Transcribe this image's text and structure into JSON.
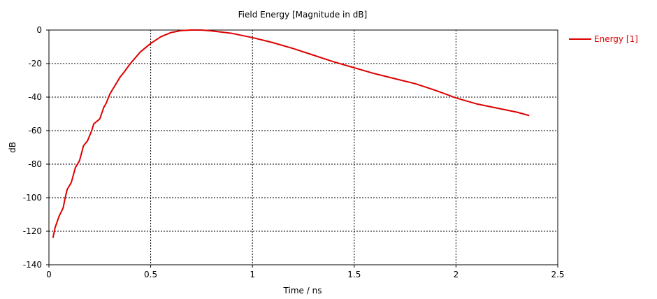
{
  "chart_data": {
    "type": "line",
    "title": "Field Energy [Magnitude in dB]",
    "xlabel": "Time / ns",
    "ylabel": "dB",
    "xlim": [
      0,
      2.5
    ],
    "ylim": [
      -140,
      0
    ],
    "xticks": [
      0,
      0.5,
      1,
      1.5,
      2,
      2.5
    ],
    "xtick_labels": [
      "0",
      "0.5",
      "1",
      "1.5",
      "2",
      "2.5"
    ],
    "yticks": [
      0,
      -20,
      -40,
      -60,
      -80,
      -100,
      -120,
      -140
    ],
    "ytick_labels": [
      "0",
      "-20",
      "-40",
      "-60",
      "-80",
      "-100",
      "-120",
      "-140"
    ],
    "grid": true,
    "legend_position": "right",
    "series": [
      {
        "name": "Energy [1]",
        "color": "#dd0000",
        "x": [
          0.02,
          0.03,
          0.05,
          0.07,
          0.08,
          0.09,
          0.11,
          0.13,
          0.15,
          0.17,
          0.19,
          0.21,
          0.22,
          0.25,
          0.27,
          0.28,
          0.3,
          0.32,
          0.35,
          0.37,
          0.4,
          0.45,
          0.5,
          0.55,
          0.6,
          0.65,
          0.7,
          0.75,
          0.8,
          0.9,
          1.0,
          1.1,
          1.2,
          1.3,
          1.4,
          1.5,
          1.6,
          1.7,
          1.8,
          1.9,
          2.0,
          2.1,
          2.2,
          2.3,
          2.36
        ],
        "values": [
          -124,
          -118,
          -111,
          -106,
          -100,
          -95,
          -91,
          -82,
          -78,
          -69,
          -66,
          -60,
          -56,
          -53,
          -46,
          -44,
          -38,
          -34,
          -28,
          -25,
          -20,
          -13,
          -8,
          -4,
          -1.5,
          -0.3,
          0,
          0,
          -0.5,
          -2,
          -4.5,
          -7.5,
          -11,
          -15,
          -19,
          -22.5,
          -26,
          -29,
          -32,
          -36,
          -40.5,
          -44,
          -46.5,
          -49,
          -51
        ]
      }
    ]
  }
}
